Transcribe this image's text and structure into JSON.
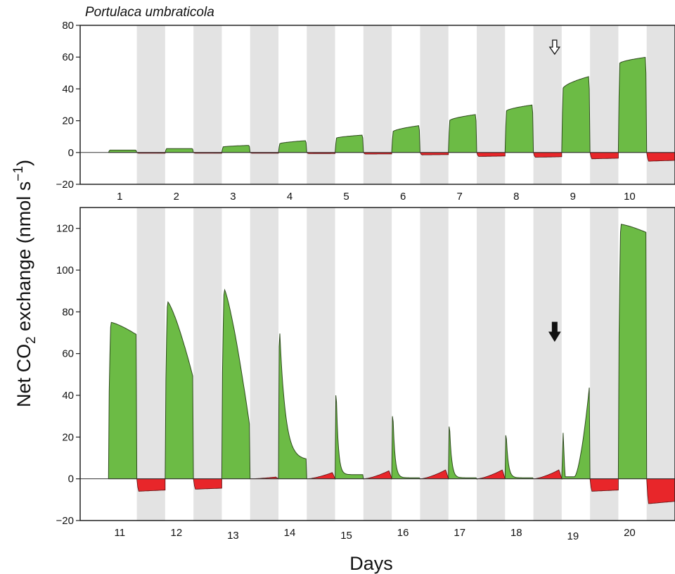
{
  "figure": {
    "title": "Portulaca umbraticola",
    "ylabel_main": "Net CO",
    "ylabel_sub": "2",
    "ylabel_mid": " exchange (nmol s",
    "ylabel_sup": "−1",
    "ylabel_end": ")",
    "xlabel": "Days"
  },
  "chart_data": [
    {
      "type": "area",
      "panel": "top",
      "title": "Portulaca umbraticola",
      "xlabel": "",
      "ylabel": "Net CO2 exchange (nmol s−1)",
      "ylim": [
        -20,
        80
      ],
      "yticks": [
        -20,
        0,
        20,
        40,
        60,
        80
      ],
      "ytick_labels": [
        "−20",
        "0",
        "20",
        "40",
        "60",
        "80"
      ],
      "xlim": [
        0.5,
        11
      ],
      "days": [
        1,
        2,
        3,
        4,
        5,
        6,
        7,
        8,
        9,
        10
      ],
      "day_labels": [
        "1",
        "2",
        "3",
        "4",
        "5",
        "6",
        "7",
        "8",
        "9",
        "10"
      ],
      "photoperiod": {
        "light_fraction": 0.5,
        "shading": "dark periods shaded grey"
      },
      "light_period_uptake_max": [
        1.5,
        2.5,
        4.5,
        7.5,
        11,
        17,
        24,
        30,
        48,
        60
      ],
      "light_period_uptake_start": [
        1.5,
        2.5,
        3.5,
        5.5,
        9,
        13,
        20,
        26,
        40,
        56
      ],
      "dark_period_release": [
        -0.5,
        -0.5,
        -0.5,
        -0.7,
        -1,
        -1.5,
        -2.5,
        -3,
        -4,
        -5.5
      ],
      "colors": {
        "uptake": "#6cbb45",
        "release": "#e8262a",
        "dark_shading": "#e3e3e3"
      },
      "annotations": [
        {
          "type": "arrow",
          "style": "open",
          "direction": "down",
          "day": 9
        }
      ],
      "grid": false
    },
    {
      "type": "area",
      "panel": "bottom",
      "xlabel": "Days",
      "ylabel": "Net CO2 exchange (nmol s−1)",
      "ylim": [
        -20,
        130
      ],
      "yticks": [
        -20,
        0,
        20,
        40,
        60,
        80,
        100,
        120
      ],
      "ytick_labels": [
        "−20",
        "0",
        "20",
        "40",
        "60",
        "80",
        "100",
        "120"
      ],
      "xlim": [
        10.5,
        21
      ],
      "days": [
        11,
        12,
        13,
        14,
        15,
        16,
        17,
        18,
        19,
        20
      ],
      "day_labels": [
        "11",
        "12",
        "13",
        "14",
        "15",
        "16",
        "17",
        "18",
        "19",
        "20"
      ],
      "photoperiod": {
        "light_fraction": 0.5,
        "shading": "dark periods shaded grey"
      },
      "light_period_uptake_peak": [
        75,
        85,
        91,
        76,
        48,
        36,
        30,
        25,
        22,
        122
      ],
      "light_period_uptake_end": [
        69,
        48,
        24,
        9,
        2,
        0.5,
        0.5,
        0.5,
        47,
        118
      ],
      "dark_period_net": [
        -6,
        -5,
        1,
        3.5,
        4.5,
        5,
        5,
        5,
        -6,
        -12
      ],
      "colors": {
        "uptake": "#6cbb45",
        "release": "#e8262a",
        "dark_shading": "#e3e3e3"
      },
      "annotations": [
        {
          "type": "arrow",
          "style": "filled",
          "direction": "down",
          "day": 19
        }
      ],
      "grid": false
    }
  ]
}
